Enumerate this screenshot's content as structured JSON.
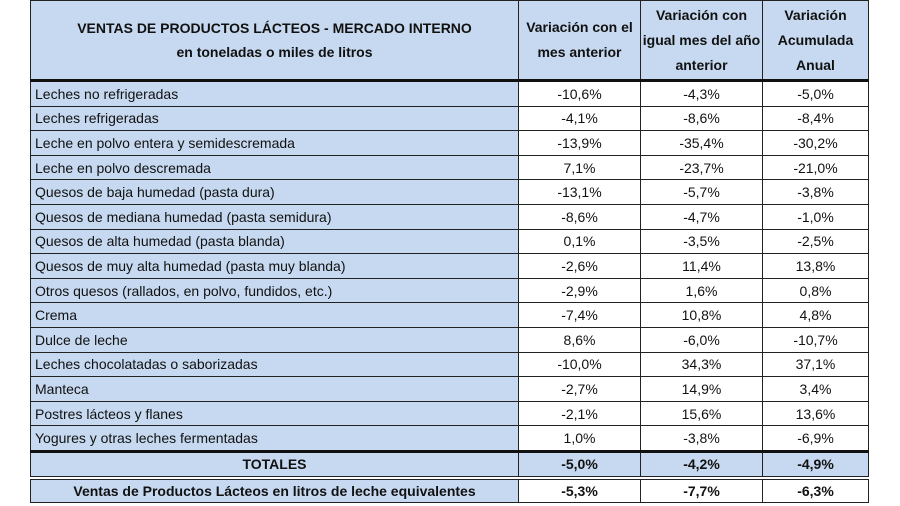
{
  "header": {
    "title": "VENTAS DE PRODUCTOS LÁCTEOS - MERCADO INTERNO",
    "subtitle": "en toneladas o miles de litros",
    "columns": [
      "Variación con el mes anterior",
      "Variación con igual mes del año anterior",
      "Variación Acumulada Anual"
    ]
  },
  "rows": [
    {
      "label": "Leches no refrigeradas",
      "v": [
        "-10,6%",
        "-4,3%",
        "-5,0%"
      ]
    },
    {
      "label": "Leches refrigeradas",
      "v": [
        "-4,1%",
        "-8,6%",
        "-8,4%"
      ]
    },
    {
      "label": "Leche en polvo entera y semidescremada",
      "v": [
        "-13,9%",
        "-35,4%",
        "-30,2%"
      ]
    },
    {
      "label": "Leche en polvo descremada",
      "v": [
        "7,1%",
        "-23,7%",
        "-21,0%"
      ]
    },
    {
      "label": "Quesos de baja humedad (pasta dura)",
      "v": [
        "-13,1%",
        "-5,7%",
        "-3,8%"
      ]
    },
    {
      "label": "Quesos de mediana humedad (pasta semidura)",
      "v": [
        "-8,6%",
        "-4,7%",
        "-1,0%"
      ]
    },
    {
      "label": "Quesos de alta humedad (pasta blanda)",
      "v": [
        "0,1%",
        "-3,5%",
        "-2,5%"
      ]
    },
    {
      "label": "Quesos de muy alta humedad (pasta muy blanda)",
      "v": [
        "-2,6%",
        "11,4%",
        "13,8%"
      ]
    },
    {
      "label": "Otros quesos (rallados, en polvo, fundidos, etc.)",
      "v": [
        "-2,9%",
        "1,6%",
        "0,8%"
      ]
    },
    {
      "label": "Crema",
      "v": [
        "-7,4%",
        "10,8%",
        "4,8%"
      ]
    },
    {
      "label": "Dulce de leche",
      "v": [
        "8,6%",
        "-6,0%",
        "-10,7%"
      ]
    },
    {
      "label": "Leches chocolatadas o saborizadas",
      "v": [
        "-10,0%",
        "34,3%",
        "37,1%"
      ]
    },
    {
      "label": "Manteca",
      "v": [
        "-2,7%",
        "14,9%",
        "3,4%"
      ]
    },
    {
      "label": "Postres lácteos y flanes",
      "v": [
        "-2,1%",
        "15,6%",
        "13,6%"
      ]
    },
    {
      "label": "Yogures y otras leches fermentadas",
      "v": [
        "1,0%",
        "-3,8%",
        "-6,9%"
      ]
    }
  ],
  "totals": {
    "label": "TOTALES",
    "v": [
      "-5,0%",
      "-4,2%",
      "-4,9%"
    ]
  },
  "equivalent": {
    "label": "Ventas de Productos Lácteos en litros de leche equivalentes",
    "v": [
      "-5,3%",
      "-7,7%",
      "-6,3%"
    ]
  },
  "colors": {
    "header_bg": "#c6d9f0",
    "cell_bg": "#ffffff",
    "border": "#222222"
  }
}
